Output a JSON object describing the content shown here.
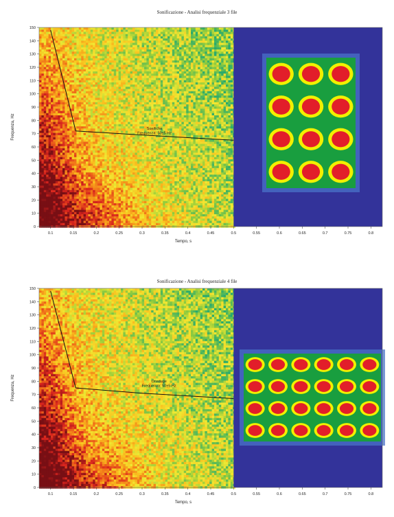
{
  "chart_data": [
    {
      "type": "heatmap",
      "title": "Sonificazione - Analisi frequenziale 3 file",
      "xlabel": "Tempo, s",
      "ylabel": "Frequenza, Hz",
      "x_ticks": [
        "0.1",
        "0.15",
        "0.2",
        "0.25",
        "0.3",
        "0.35",
        "0.4",
        "0.45",
        "0.5",
        "0.55",
        "0.6",
        "0.65",
        "0.7",
        "0.75",
        "0.8"
      ],
      "y_ticks": [
        "0",
        "10",
        "20",
        "30",
        "40",
        "50",
        "60",
        "70",
        "80",
        "90",
        "100",
        "110",
        "120",
        "130",
        "140",
        "150"
      ],
      "xlim": [
        0.075,
        0.825
      ],
      "ylim": [
        0,
        150
      ],
      "data_x_end": 0.5,
      "annotation": {
        "lines": [
          "Sonifiche",
          "Frequenza: 50±5 Hz"
        ],
        "x": 0.3,
        "y": 72
      },
      "curve": [
        {
          "x": 0.1,
          "y": 148
        },
        {
          "x": 0.155,
          "y": 72
        },
        {
          "x": 0.3,
          "y": 69
        },
        {
          "x": 0.5,
          "y": 65
        }
      ],
      "inset": {
        "rows": 4,
        "cols": 3
      },
      "colors": {
        "navy": "#33339a",
        "green": "#199e3f",
        "yellow": "#f2f000",
        "red": "#e21e2a"
      }
    },
    {
      "type": "heatmap",
      "title": "Sonificazione - Analisi frequenziale 4 file",
      "xlabel": "Tempo, s",
      "ylabel": "Frequenza, Hz",
      "x_ticks": [
        "0.1",
        "0.15",
        "0.2",
        "0.25",
        "0.3",
        "0.35",
        "0.4",
        "0.45",
        "0.5",
        "0.55",
        "0.6",
        "0.65",
        "0.7",
        "0.75",
        "0.8"
      ],
      "y_ticks": [
        "0",
        "10",
        "20",
        "30",
        "40",
        "50",
        "60",
        "70",
        "80",
        "90",
        "100",
        "110",
        "120",
        "130",
        "140",
        "150"
      ],
      "xlim": [
        0.075,
        0.825
      ],
      "ylim": [
        0,
        150
      ],
      "data_x_end": 0.5,
      "annotation": {
        "lines": [
          "Onsduge",
          "Frequenza: 50±5 Hz"
        ],
        "x": 0.31,
        "y": 78
      },
      "curve": [
        {
          "x": 0.1,
          "y": 148
        },
        {
          "x": 0.155,
          "y": 75
        },
        {
          "x": 0.3,
          "y": 71
        },
        {
          "x": 0.5,
          "y": 67
        }
      ],
      "inset": {
        "rows": 4,
        "cols": 6
      },
      "colors": {
        "navy": "#33339a",
        "green": "#199e3f",
        "yellow": "#f2f000",
        "red": "#e21e2a"
      }
    }
  ]
}
